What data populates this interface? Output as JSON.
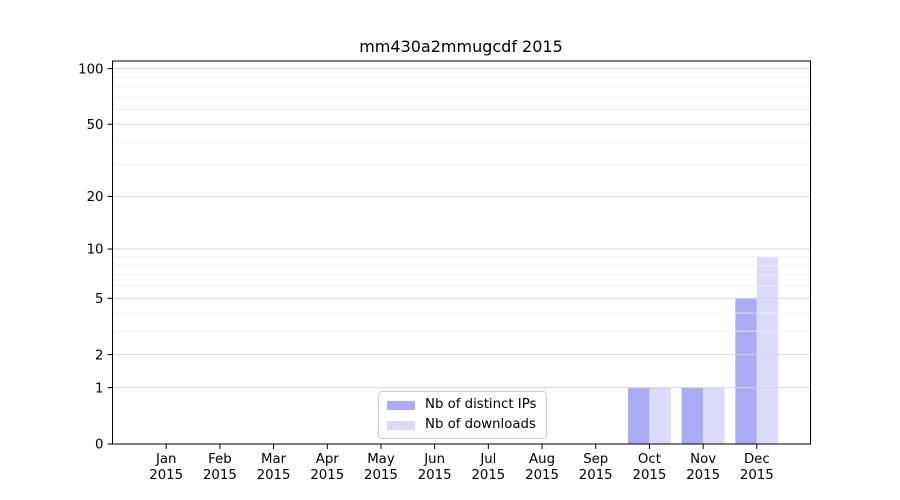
{
  "chart_data": {
    "type": "bar",
    "title": "mm430a2mmugcdf 2015",
    "categories": [
      "Jan",
      "Feb",
      "Mar",
      "Apr",
      "May",
      "Jun",
      "Jul",
      "Aug",
      "Sep",
      "Oct",
      "Nov",
      "Dec"
    ],
    "x_tick_second_line": "2015",
    "series": [
      {
        "name": "Nb of distinct IPs",
        "color": "#ababf5",
        "values": [
          0,
          0,
          0,
          0,
          0,
          0,
          0,
          0,
          0,
          1,
          1,
          5
        ]
      },
      {
        "name": "Nb of downloads",
        "color": "#dbdbf9",
        "values": [
          0,
          0,
          0,
          0,
          0,
          0,
          0,
          0,
          0,
          1,
          1,
          9
        ]
      }
    ],
    "yscale": "log1p",
    "ylim": [
      0,
      110
    ],
    "yticks": [
      0,
      1,
      2,
      5,
      10,
      20,
      50,
      100
    ],
    "yticks_minor": [
      3,
      4,
      6,
      7,
      8,
      9,
      30,
      40,
      60,
      70,
      80,
      90
    ],
    "grid": "horizontal",
    "grid_color_major": "#d4d4d4",
    "grid_color_minor": "#ededed",
    "axis_color": "#000000",
    "background": "#ffffff",
    "legend_position": "lower center",
    "xlabel": "",
    "ylabel": ""
  }
}
